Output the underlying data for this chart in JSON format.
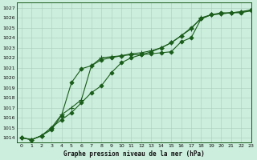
{
  "title": "Graphe pression niveau de la mer (hPa)",
  "bg_color": "#cceedd",
  "grid_color": "#aaccbb",
  "line_color": "#1a5c1a",
  "xlim": [
    -0.5,
    23
  ],
  "ylim": [
    1013.5,
    1027.5
  ],
  "yticks": [
    1014,
    1015,
    1016,
    1017,
    1018,
    1019,
    1020,
    1021,
    1022,
    1023,
    1024,
    1025,
    1026,
    1027
  ],
  "xticks": [
    0,
    1,
    2,
    3,
    4,
    5,
    6,
    7,
    8,
    9,
    10,
    11,
    12,
    13,
    14,
    15,
    16,
    17,
    18,
    19,
    20,
    21,
    22,
    23
  ],
  "series": [
    {
      "y": [
        1014.0,
        1013.8,
        1014.2,
        1014.8,
        1016.2,
        1019.5,
        1020.9,
        1021.2,
        1021.8,
        1022.0,
        1022.2,
        1022.3,
        1022.3,
        1022.4,
        1022.5,
        1022.6,
        1023.6,
        1024.0,
        1025.9,
        1026.3,
        1026.4,
        1026.5,
        1026.5,
        1026.7
      ],
      "marker": "D",
      "markersize": 2.5,
      "lw": 0.8
    },
    {
      "y": [
        1014.0,
        1013.8,
        1014.2,
        1015.0,
        1016.3,
        1017.0,
        1017.8,
        1021.2,
        1022.0,
        1022.1,
        1022.2,
        1022.4,
        1022.5,
        1022.7,
        1023.0,
        1023.5,
        1024.2,
        1024.9,
        1026.0,
        1026.3,
        1026.4,
        1026.5,
        1026.6,
        1026.7
      ],
      "marker": "+",
      "markersize": 4.5,
      "lw": 0.8
    },
    {
      "y": [
        1014.0,
        1013.8,
        1014.2,
        1015.0,
        1015.8,
        1016.5,
        1017.5,
        1018.5,
        1019.2,
        1020.5,
        1021.5,
        1022.0,
        1022.3,
        1022.6,
        1023.0,
        1023.5,
        1024.2,
        1025.0,
        1025.9,
        1026.3,
        1026.5,
        1026.5,
        1026.6,
        1026.8
      ],
      "marker": "D",
      "markersize": 2.5,
      "lw": 0.8
    }
  ],
  "figwidth": 3.2,
  "figheight": 2.0,
  "dpi": 100
}
